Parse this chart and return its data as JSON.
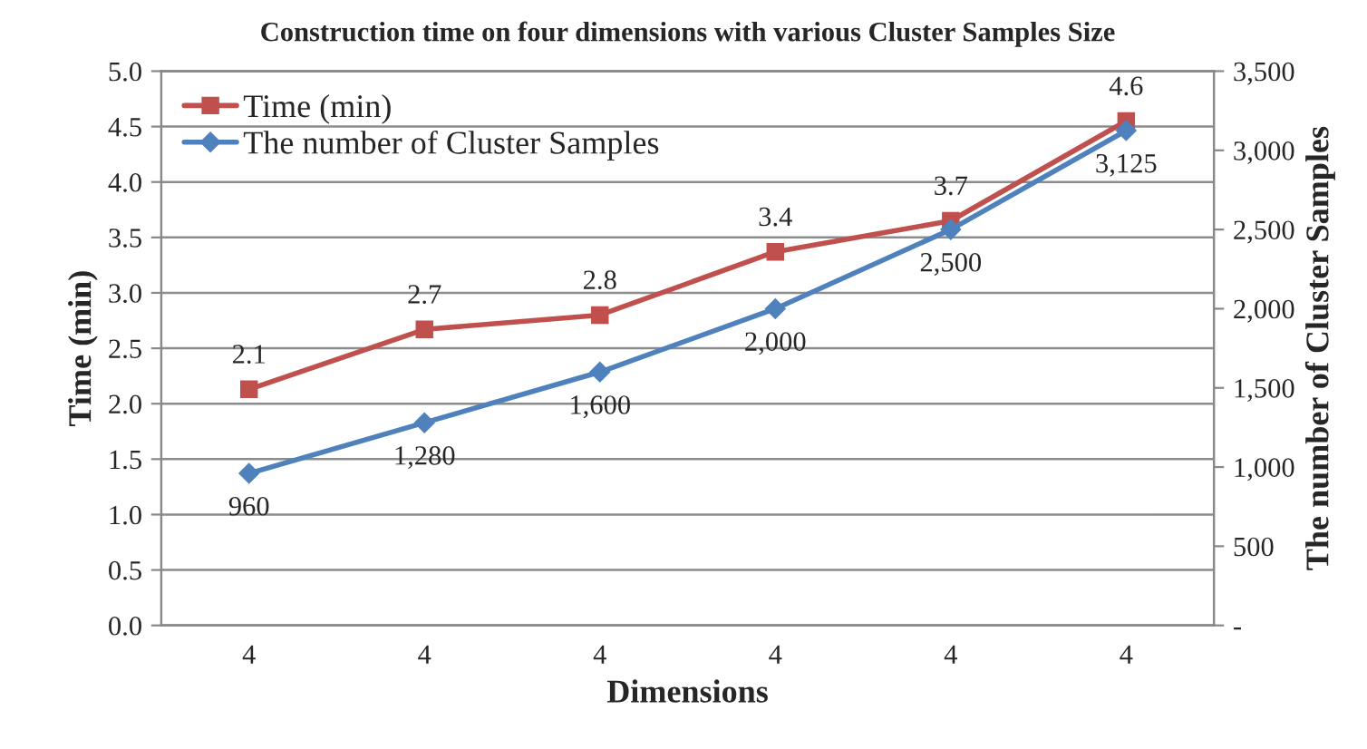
{
  "chart_data": {
    "type": "line",
    "title": "Construction time on four dimensions with various Cluster Samples Size",
    "xlabel": "Dimensions",
    "ylabel": "Time (min)",
    "y2label": "The number of Cluster Samples",
    "categories": [
      "4",
      "4",
      "4",
      "4",
      "4",
      "4"
    ],
    "series": [
      {
        "name": "Time (min)",
        "color": "#c0504d",
        "marker": "square",
        "values": [
          2.13,
          2.67,
          2.8,
          3.37,
          3.65,
          4.55
        ],
        "value_labels": [
          "2.1",
          "2.7",
          "2.8",
          "3.4",
          "3.7",
          "4.6"
        ]
      },
      {
        "name": "The number of Cluster Samples",
        "color": "#4f81bd",
        "marker": "diamond",
        "axis": "y2",
        "values": [
          960,
          1280,
          1600,
          2000,
          2500,
          3125
        ],
        "value_labels": [
          "960",
          "1,280",
          "1,600",
          "2,000",
          "2,500",
          "3,125"
        ]
      }
    ],
    "ylim": [
      0,
      5
    ],
    "yticks": [
      {
        "value": 0,
        "label": "0.0"
      },
      {
        "value": 0.5,
        "label": "0.5"
      },
      {
        "value": 1,
        "label": "1.0"
      },
      {
        "value": 1.5,
        "label": "1.5"
      },
      {
        "value": 2,
        "label": "2.0"
      },
      {
        "value": 2.5,
        "label": "2.5"
      },
      {
        "value": 3,
        "label": "3.0"
      },
      {
        "value": 3.5,
        "label": "3.5"
      },
      {
        "value": 4,
        "label": "4.0"
      },
      {
        "value": 4.5,
        "label": "4.5"
      },
      {
        "value": 5,
        "label": "5.0"
      }
    ],
    "y2lim": [
      0,
      3500
    ],
    "y2ticks": [
      {
        "value": 0,
        "label": "-"
      },
      {
        "value": 500,
        "label": "500"
      },
      {
        "value": 1000,
        "label": "1,000"
      },
      {
        "value": 1500,
        "label": "1,500"
      },
      {
        "value": 2000,
        "label": "2,000"
      },
      {
        "value": 2500,
        "label": "2,500"
      },
      {
        "value": 3000,
        "label": "3,000"
      },
      {
        "value": 3500,
        "label": "3,500"
      }
    ],
    "grid": "y",
    "legend": "top left",
    "line_style": "solid"
  }
}
